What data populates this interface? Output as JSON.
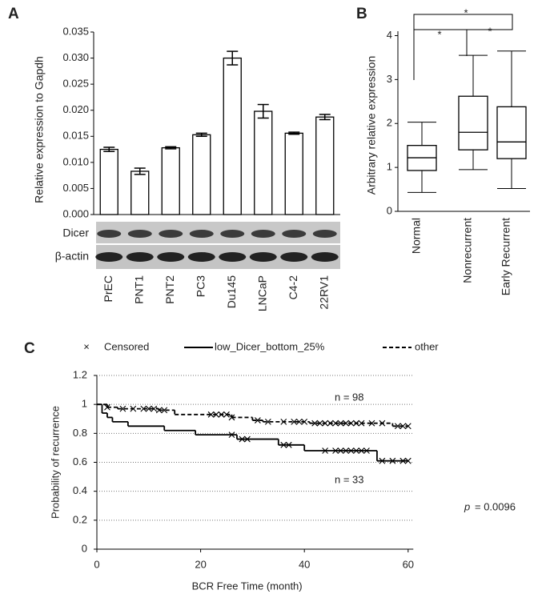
{
  "chart_data": [
    {
      "type": "bar",
      "panel": "A",
      "ylabel": "Relative expression to Gapdh",
      "categories": [
        "PrEC",
        "PNT1",
        "PNT2",
        "PC3",
        "Du145",
        "LNCaP",
        "C4-2",
        "22RV1"
      ],
      "values": [
        0.0125,
        0.0083,
        0.0128,
        0.0153,
        0.03,
        0.0198,
        0.0156,
        0.0187
      ],
      "errors": [
        0.0004,
        0.0006,
        0.0002,
        0.0003,
        0.0013,
        0.0013,
        0.0002,
        0.0005
      ],
      "color": "#ffffff",
      "ylim": [
        0,
        0.035
      ],
      "yticks": [
        {
          "value": 0,
          "label": "0.000"
        },
        {
          "value": 0.005,
          "label": "0.005"
        },
        {
          "value": 0.01,
          "label": "0.010"
        },
        {
          "value": 0.015,
          "label": "0.015"
        },
        {
          "value": 0.02,
          "label": "0.020"
        },
        {
          "value": 0.025,
          "label": "0.025"
        },
        {
          "value": 0.03,
          "label": "0.030"
        },
        {
          "value": 0.035,
          "label": "0.035"
        }
      ],
      "blot_labels": [
        "Dicer",
        "β-actin"
      ]
    },
    {
      "type": "box",
      "panel": "B",
      "ylabel": "Arbitrary relative expression",
      "categories": [
        "Normal",
        "Nonrecurrent",
        "Early Recurrent"
      ],
      "min": [
        0.43,
        0.95,
        0.52
      ],
      "q1": [
        0.93,
        1.4,
        1.2
      ],
      "median": [
        1.22,
        1.8,
        1.58
      ],
      "q3": [
        1.5,
        2.62,
        2.38
      ],
      "max": [
        2.03,
        3.55,
        3.65
      ],
      "ylim": [
        0,
        4.1
      ],
      "yticks": [
        0,
        1,
        2,
        3,
        4
      ],
      "significance": [
        "*",
        "*",
        "*"
      ]
    },
    {
      "type": "line",
      "panel": "C",
      "xlabel": "BCR Free Time (month)",
      "ylabel": "Probability of recurrence",
      "xlim": [
        0,
        61
      ],
      "xticks": [
        0,
        20,
        40,
        60
      ],
      "ylim": [
        0,
        1.2
      ],
      "yticks": [
        0,
        0.2,
        0.4,
        0.6,
        0.8,
        1,
        1.2
      ],
      "grid": true,
      "censored_label": "Censored",
      "series": [
        {
          "name": "low_Dicer_bottom_25%",
          "color": "#000000",
          "dash": "solid",
          "n_label": "n = 33",
          "x": [
            0,
            1,
            2,
            3,
            6,
            13,
            19,
            27,
            35,
            40,
            54
          ],
          "values": [
            1,
            0.94,
            0.91,
            0.88,
            0.85,
            0.82,
            0.79,
            0.76,
            0.72,
            0.68,
            0.61
          ],
          "censored_x": [
            26,
            28,
            29,
            36,
            37,
            44,
            46,
            47,
            48,
            49,
            50,
            51,
            52,
            55,
            57,
            59,
            60
          ],
          "censored_values": [
            0.79,
            0.76,
            0.76,
            0.72,
            0.72,
            0.68,
            0.68,
            0.68,
            0.68,
            0.68,
            0.68,
            0.68,
            0.68,
            0.61,
            0.61,
            0.61,
            0.61
          ]
        },
        {
          "name": "other",
          "color": "#000000",
          "dash": "dashed",
          "n_label": "n = 98",
          "x": [
            0,
            2,
            4,
            12,
            15,
            26,
            30,
            32,
            41,
            57
          ],
          "values": [
            1,
            0.98,
            0.97,
            0.96,
            0.93,
            0.91,
            0.89,
            0.88,
            0.87,
            0.85
          ],
          "censored_x": [
            2,
            5,
            7,
            9,
            10,
            11,
            12,
            13,
            22,
            23,
            24,
            25,
            26,
            31,
            33,
            36,
            38,
            39,
            40,
            42,
            43,
            44,
            45,
            46,
            47,
            48,
            49,
            50,
            51,
            53,
            55,
            58,
            59,
            60
          ],
          "censored_values": [
            0.98,
            0.97,
            0.97,
            0.97,
            0.97,
            0.97,
            0.96,
            0.96,
            0.93,
            0.93,
            0.93,
            0.93,
            0.91,
            0.89,
            0.88,
            0.88,
            0.88,
            0.88,
            0.88,
            0.87,
            0.87,
            0.87,
            0.87,
            0.87,
            0.87,
            0.87,
            0.87,
            0.87,
            0.87,
            0.87,
            0.87,
            0.85,
            0.85,
            0.85
          ]
        }
      ],
      "p_symbol": "p",
      "p_text": "= 0.0096"
    }
  ]
}
